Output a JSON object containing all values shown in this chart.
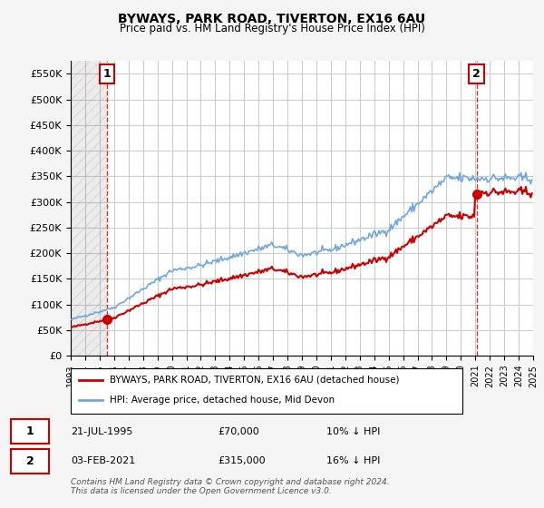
{
  "title": "BYWAYS, PARK ROAD, TIVERTON, EX16 6AU",
  "subtitle": "Price paid vs. HM Land Registry's House Price Index (HPI)",
  "ylabel_ticks": [
    "£0",
    "£50K",
    "£100K",
    "£150K",
    "£200K",
    "£250K",
    "£300K",
    "£350K",
    "£400K",
    "£450K",
    "£500K",
    "£550K"
  ],
  "ytick_values": [
    0,
    50000,
    100000,
    150000,
    200000,
    250000,
    300000,
    350000,
    400000,
    450000,
    500000,
    550000
  ],
  "ylim": [
    0,
    575000
  ],
  "legend_line1": "BYWAYS, PARK ROAD, TIVERTON, EX16 6AU (detached house)",
  "legend_line2": "HPI: Average price, detached house, Mid Devon",
  "annotation1_label": "1",
  "annotation1_date": "21-JUL-1995",
  "annotation1_price": "£70,000",
  "annotation1_hpi": "10% ↓ HPI",
  "annotation2_label": "2",
  "annotation2_date": "03-FEB-2021",
  "annotation2_price": "£315,000",
  "annotation2_hpi": "16% ↓ HPI",
  "copyright": "Contains HM Land Registry data © Crown copyright and database right 2024.\nThis data is licensed under the Open Government Licence v3.0.",
  "hpi_color": "#6fa8dc",
  "sale_color": "#cc0000",
  "grid_color": "#cccccc",
  "bg_color": "#f0f0f0",
  "plot_bg": "#ffffff",
  "annotation_box_color": "#cc0000",
  "dashed_line_color": "#cc0000"
}
